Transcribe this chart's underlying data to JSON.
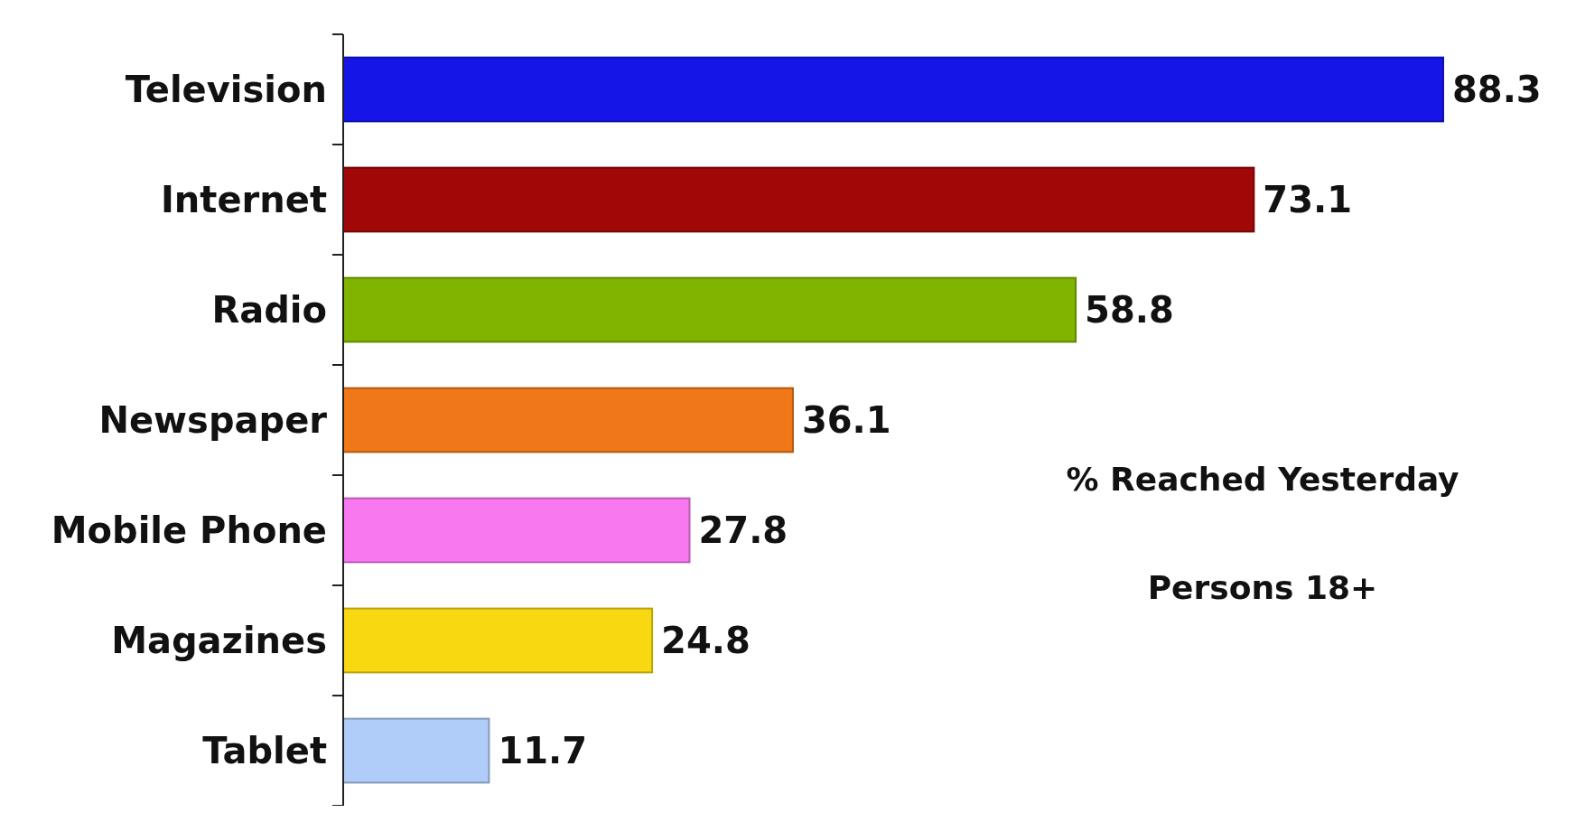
{
  "chart_data": {
    "type": "bar",
    "orientation": "horizontal",
    "categories": [
      "Television",
      "Internet",
      "Radio",
      "Newspaper",
      "Mobile Phone",
      "Magazines",
      "Tablet"
    ],
    "values": [
      88.3,
      73.1,
      58.8,
      36.1,
      27.8,
      24.8,
      11.7
    ],
    "colors": [
      "#1515e8",
      "#a00808",
      "#80b400",
      "#f07818",
      "#f878f0",
      "#f8d810",
      "#b0ccf8"
    ],
    "data_labels": true,
    "annotations": [
      "% Reached Yesterday",
      "Persons 18+"
    ]
  }
}
